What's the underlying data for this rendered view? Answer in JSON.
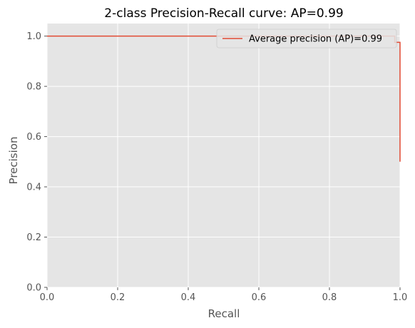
{
  "chart_data": {
    "type": "line",
    "title": "2-class Precision-Recall curve: AP=0.99",
    "xlabel": "Recall",
    "ylabel": "Precision",
    "xlim": [
      0,
      1
    ],
    "ylim": [
      0,
      1.05
    ],
    "xticks": [
      0.0,
      0.2,
      0.4,
      0.6,
      0.8,
      1.0
    ],
    "xtick_labels": [
      "0.0",
      "0.2",
      "0.4",
      "0.6",
      "0.8",
      "1.0"
    ],
    "yticks": [
      0.0,
      0.2,
      0.4,
      0.6,
      0.8,
      1.0
    ],
    "ytick_labels": [
      "0.0",
      "0.2",
      "0.4",
      "0.6",
      "0.8",
      "1.0"
    ],
    "grid": true,
    "style": "ggplot",
    "legend_position": "top-right",
    "series": [
      {
        "name": "Average precision (AP)=0.99",
        "color": "#E24A33",
        "drawstyle": "steps-post",
        "x": [
          0.0,
          0.985,
          0.985,
          1.0,
          1.0
        ],
        "y": [
          1.0,
          1.0,
          0.975,
          0.975,
          0.5
        ]
      }
    ]
  }
}
